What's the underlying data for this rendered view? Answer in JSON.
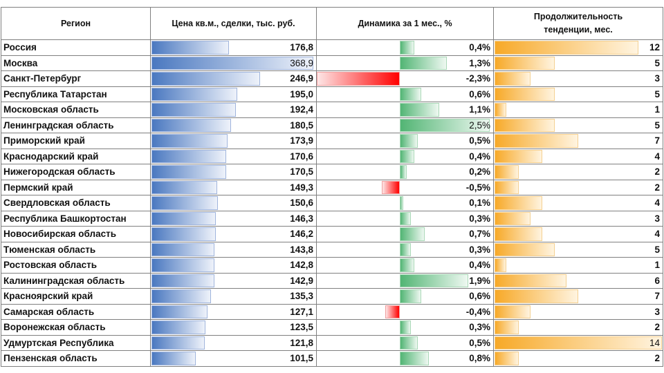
{
  "headers": {
    "region": "Регион",
    "price": "Цена кв.м., сделки, тыс. руб.",
    "dynamics": "Динамика за 1 мес., %",
    "duration_line1": "Продолжительность",
    "duration_line2": "тенденции, мес."
  },
  "colors": {
    "price_bar": "#4a78c0",
    "positive_bar": "#52b574",
    "negative_bar": "#ff0000",
    "duration_bar": "#f7a928"
  },
  "rows": [
    {
      "region": "Россия",
      "price": "176,8",
      "dynamics": "0,4%",
      "duration": "12"
    },
    {
      "region": "Москва",
      "price": "368,9",
      "dynamics": "1,3%",
      "duration": "5"
    },
    {
      "region": "Санкт-Петербург",
      "price": "246,9",
      "dynamics": "-2,3%",
      "duration": "3"
    },
    {
      "region": "Республика Татарстан",
      "price": "195,0",
      "dynamics": "0,6%",
      "duration": "5"
    },
    {
      "region": "Московская область",
      "price": "192,4",
      "dynamics": "1,1%",
      "duration": "1"
    },
    {
      "region": "Ленинградская область",
      "price": "180,5",
      "dynamics": "2,5%",
      "duration": "5"
    },
    {
      "region": "Приморский край",
      "price": "173,9",
      "dynamics": "0,5%",
      "duration": "7"
    },
    {
      "region": "Краснодарский край",
      "price": "170,6",
      "dynamics": "0,4%",
      "duration": "4"
    },
    {
      "region": "Нижегородская область",
      "price": "170,5",
      "dynamics": "0,2%",
      "duration": "2"
    },
    {
      "region": "Пермский край",
      "price": "149,3",
      "dynamics": "-0,5%",
      "duration": "2"
    },
    {
      "region": "Свердловская область",
      "price": "150,6",
      "dynamics": "0,1%",
      "duration": "4"
    },
    {
      "region": "Республика Башкортостан",
      "price": "146,3",
      "dynamics": "0,3%",
      "duration": "3"
    },
    {
      "region": "Новосибирская область",
      "price": "146,2",
      "dynamics": "0,7%",
      "duration": "4"
    },
    {
      "region": "Тюменская область",
      "price": "143,8",
      "dynamics": "0,3%",
      "duration": "5"
    },
    {
      "region": "Ростовская область",
      "price": "142,8",
      "dynamics": "0,4%",
      "duration": "1"
    },
    {
      "region": "Калининградская область",
      "price": "142,9",
      "dynamics": "1,9%",
      "duration": "6"
    },
    {
      "region": "Красноярский край",
      "price": "135,3",
      "dynamics": "0,6%",
      "duration": "7"
    },
    {
      "region": "Самарская область",
      "price": "127,1",
      "dynamics": "-0,4%",
      "duration": "3"
    },
    {
      "region": "Воронежская область",
      "price": "123,5",
      "dynamics": "0,3%",
      "duration": "2"
    },
    {
      "region": "Удмуртская Республика",
      "price": "121,8",
      "dynamics": "0,5%",
      "duration": "14"
    },
    {
      "region": "Пензенская область",
      "price": "101,5",
      "dynamics": "0,8%",
      "duration": "2"
    }
  ]
}
